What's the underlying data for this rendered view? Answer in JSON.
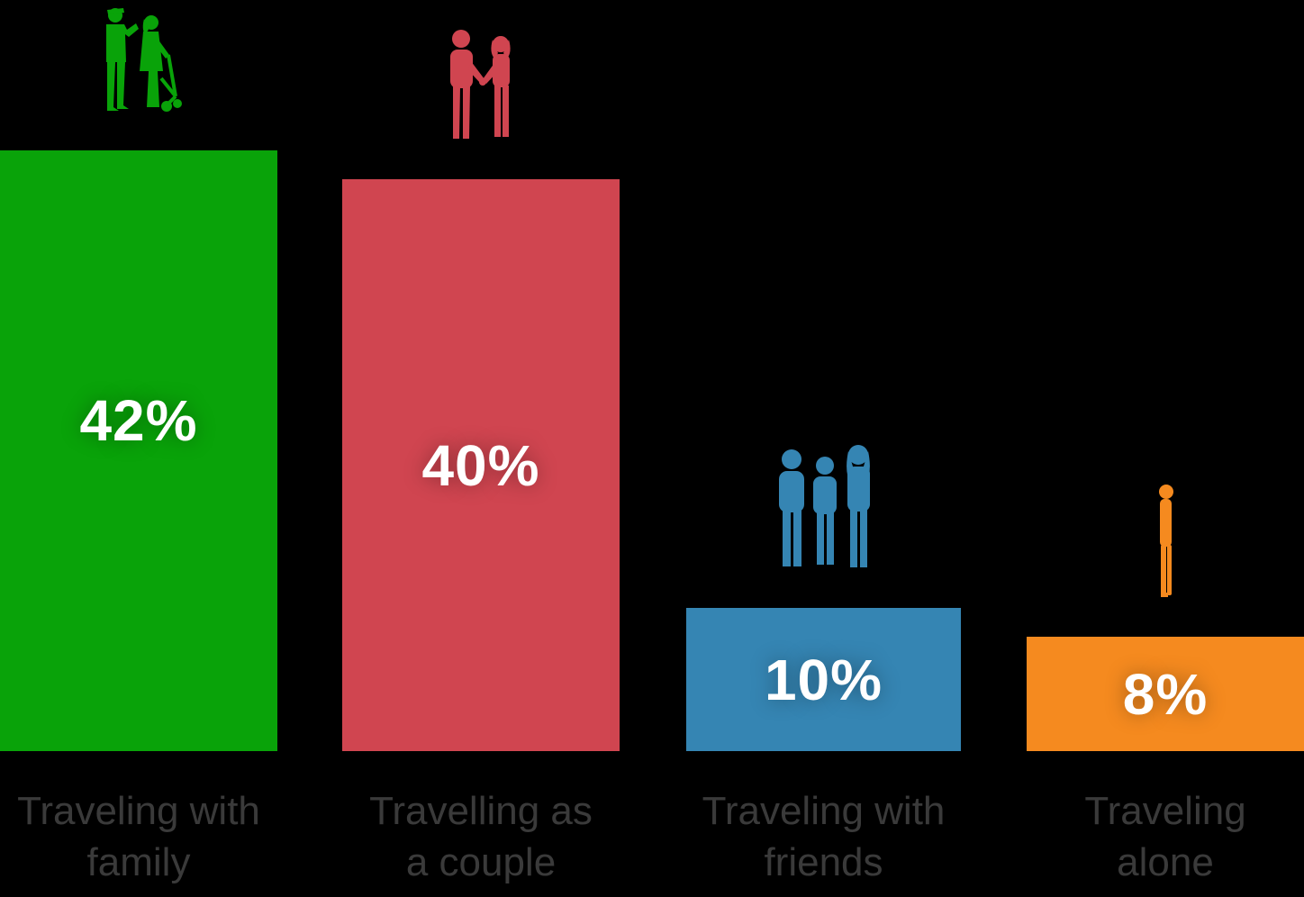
{
  "chart_data": {
    "type": "bar",
    "subtype": "pictogram",
    "title": "",
    "xlabel": "",
    "ylabel": "",
    "unit": "%",
    "ylim": [
      0,
      42
    ],
    "grid": false,
    "legend": false,
    "background_color": "#000000",
    "category_label_color": "#3a3a3a",
    "value_label_color": "#ffffff",
    "categories": [
      "Traveling with family",
      "Travelling as a couple",
      "Traveling with friends",
      "Traveling alone"
    ],
    "values": [
      42,
      40,
      10,
      8
    ],
    "bars": [
      {
        "id": "family",
        "value": 42,
        "value_label": "42%",
        "label_line1": "Traveling with",
        "label_line2": "family",
        "color": "#09a309",
        "icon": "family-icon"
      },
      {
        "id": "couple",
        "value": 40,
        "value_label": "40%",
        "label_line1": "Travelling as",
        "label_line2": "a couple",
        "color": "#d04550",
        "icon": "couple-icon"
      },
      {
        "id": "friends",
        "value": 10,
        "value_label": "10%",
        "label_line1": "Traveling with",
        "label_line2": "friends",
        "color": "#3585b3",
        "icon": "friends-icon"
      },
      {
        "id": "alone",
        "value": 8,
        "value_label": "8%",
        "label_line1": "Traveling",
        "label_line2": "alone",
        "color": "#f58a1f",
        "icon": "person-icon"
      }
    ]
  }
}
